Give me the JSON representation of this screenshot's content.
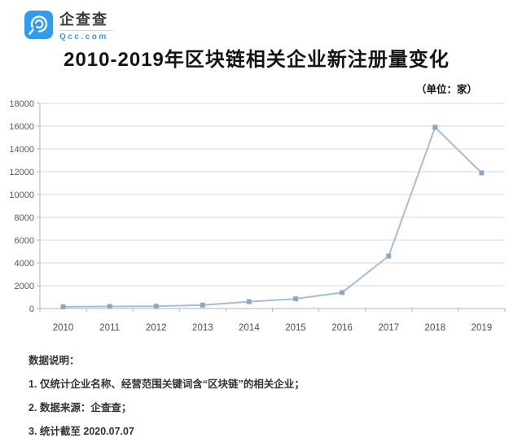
{
  "brand": {
    "name": "企查查",
    "domain": "Qcc.com",
    "logo_color": "#2f9cf1"
  },
  "header": {
    "title": "2010-2019年区块链相关企业新注册量变化",
    "unit_label": "（单位：家）"
  },
  "chart_data": {
    "type": "line",
    "title": "2010-2019年区块链相关企业新注册量变化",
    "unit": "家",
    "categories": [
      "2010",
      "2011",
      "2012",
      "2013",
      "2014",
      "2015",
      "2016",
      "2017",
      "2018",
      "2019"
    ],
    "values": [
      150,
      180,
      200,
      300,
      600,
      850,
      1400,
      4600,
      15900,
      11900
    ],
    "ylim": [
      0,
      18000
    ],
    "ytick_step": 2000,
    "grid": true,
    "legend": "none",
    "line_color": "#a5bdd6",
    "marker_color": "#8aa8c6",
    "marker_shape": "square",
    "gridline_color": "#d9d9d9",
    "axis_color": "#b3b3b3"
  },
  "footer": {
    "heading": "数据说明：",
    "notes": [
      "1. 仅统计企业名称、经营范围关键词含“区块链”的相关企业；",
      "2. 数据来源：企查查；",
      "3. 统计截至 2020.07.07"
    ]
  }
}
